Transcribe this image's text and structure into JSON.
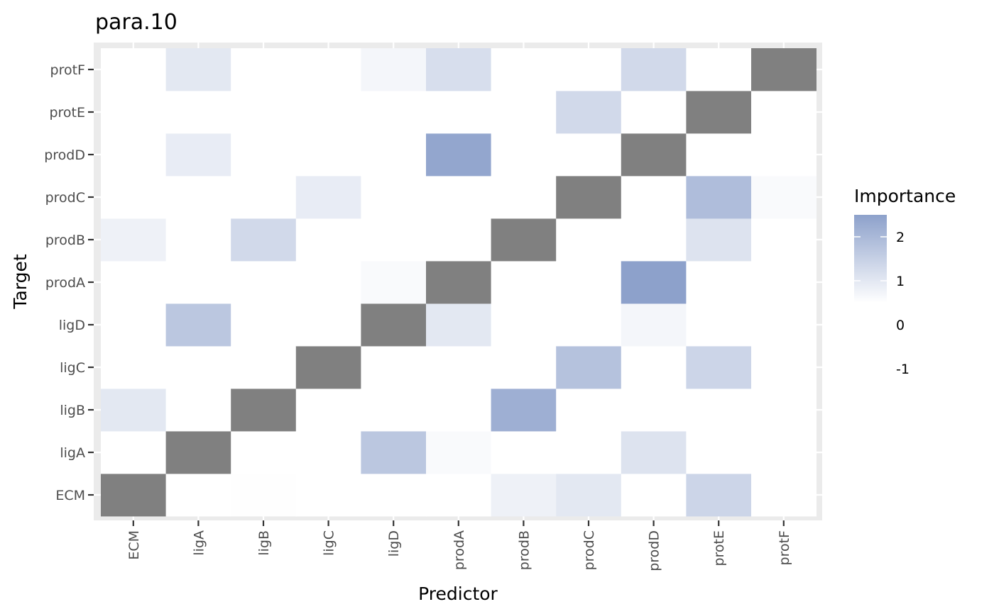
{
  "chart_data": {
    "type": "heatmap",
    "title": "para.10",
    "xlabel": "Predictor",
    "ylabel": "Target",
    "x_categories": [
      "ECM",
      "ligA",
      "ligB",
      "ligC",
      "ligD",
      "prodA",
      "prodB",
      "prodC",
      "prodD",
      "protE",
      "protF"
    ],
    "y_categories": [
      "ECM",
      "ligA",
      "ligB",
      "ligC",
      "ligD",
      "prodA",
      "prodB",
      "prodC",
      "prodD",
      "protE",
      "protF"
    ],
    "diagonal_color": "#808080",
    "grid": true,
    "legend": {
      "title": "Importance",
      "position": "right",
      "breaks": [
        2,
        1,
        0,
        -1
      ],
      "color_low": "#ffffff",
      "color_high": "#8da1cb",
      "value_min": 0.5,
      "value_max": 2.5
    },
    "cells": [
      {
        "x": "ligA",
        "y": "protF",
        "value": 1.0
      },
      {
        "x": "ligD",
        "y": "protF",
        "value": 0.7
      },
      {
        "x": "prodA",
        "y": "protF",
        "value": 1.2
      },
      {
        "x": "prodD",
        "y": "protF",
        "value": 1.3
      },
      {
        "x": "prodC",
        "y": "protE",
        "value": 1.3
      },
      {
        "x": "ligA",
        "y": "prodD",
        "value": 0.9
      },
      {
        "x": "prodA",
        "y": "prodD",
        "value": 2.4
      },
      {
        "x": "ligC",
        "y": "prodC",
        "value": 0.9
      },
      {
        "x": "protE",
        "y": "prodC",
        "value": 1.9
      },
      {
        "x": "protF",
        "y": "prodC",
        "value": 0.6
      },
      {
        "x": "ECM",
        "y": "prodB",
        "value": 0.8
      },
      {
        "x": "ligB",
        "y": "prodB",
        "value": 1.3
      },
      {
        "x": "protE",
        "y": "prodB",
        "value": 1.1
      },
      {
        "x": "ligD",
        "y": "prodA",
        "value": 0.6
      },
      {
        "x": "prodD",
        "y": "prodA",
        "value": 2.5
      },
      {
        "x": "ligA",
        "y": "ligD",
        "value": 1.7
      },
      {
        "x": "prodA",
        "y": "ligD",
        "value": 1.0
      },
      {
        "x": "prodD",
        "y": "ligD",
        "value": 0.7
      },
      {
        "x": "prodC",
        "y": "ligC",
        "value": 1.8
      },
      {
        "x": "protE",
        "y": "ligC",
        "value": 1.4
      },
      {
        "x": "ECM",
        "y": "ligB",
        "value": 1.0
      },
      {
        "x": "prodB",
        "y": "ligB",
        "value": 2.2
      },
      {
        "x": "ligD",
        "y": "ligA",
        "value": 1.7
      },
      {
        "x": "prodA",
        "y": "ligA",
        "value": 0.6
      },
      {
        "x": "prodD",
        "y": "ligA",
        "value": 1.1
      },
      {
        "x": "ligB",
        "y": "ECM",
        "value": 0.52
      },
      {
        "x": "prodB",
        "y": "ECM",
        "value": 0.8
      },
      {
        "x": "prodC",
        "y": "ECM",
        "value": 1.0
      },
      {
        "x": "protE",
        "y": "ECM",
        "value": 1.4
      }
    ]
  }
}
